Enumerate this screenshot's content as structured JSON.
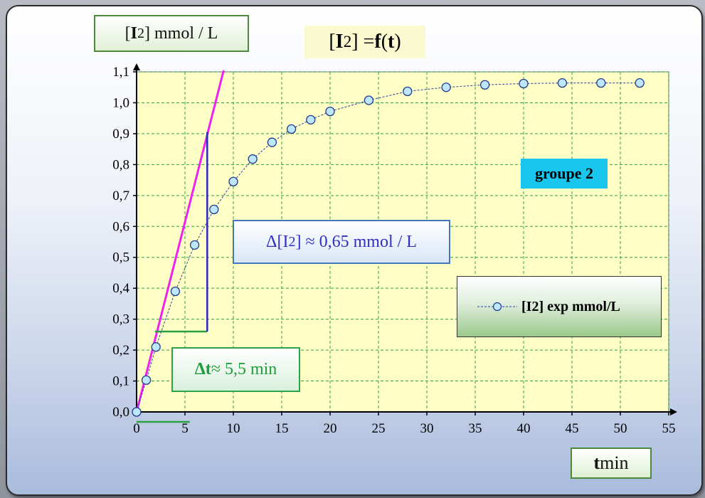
{
  "annotations": {
    "ylabel_prefix": "[ ",
    "ylabel_symbol": "I",
    "ylabel_sub": "2",
    "ylabel_suffix": " ] mmol / L",
    "title_prefix": "[ ",
    "title_symbol": "I",
    "title_sub": "2",
    "title_mid": " ] = ",
    "title_f": "f",
    "title_open": " (",
    "title_t": "t",
    "title_close": ")",
    "group_badge": "groupe 2",
    "delta_i2_prefix": "Δ[I",
    "delta_i2_sub": "2",
    "delta_i2_suffix": "] ≈ 0,65 mmol / L",
    "delta_t_symbol": "Δt",
    "delta_t_suffix": "≈ 5,5 min",
    "legend_label": "[I2] exp mmol/L",
    "xlabel_t": "t",
    "xlabel_unit": " min"
  },
  "colors": {
    "plot_bg": "#ffffc6",
    "grid": "#2fa04a",
    "series_line": "#2b3fa8",
    "marker_fill": "#bfe6ff",
    "marker_stroke": "#1e3a8a",
    "tangent": "#ee22ee",
    "delta_vertical": "#2a2ab8",
    "delta_horizontal": "#2aa043"
  },
  "chart_data": {
    "type": "scatter",
    "xlim": [
      0,
      55
    ],
    "ylim": [
      0,
      1.1
    ],
    "x_ticks": [
      0,
      5,
      10,
      15,
      20,
      25,
      30,
      35,
      40,
      45,
      50,
      55
    ],
    "x_tick_labels": [
      "0",
      "5",
      "10",
      "15",
      "20",
      "25",
      "30",
      "35",
      "40",
      "45",
      "50",
      "55"
    ],
    "y_ticks": [
      0,
      0.1,
      0.2,
      0.3,
      0.4,
      0.5,
      0.6,
      0.7,
      0.8,
      0.9,
      1.0,
      1.1
    ],
    "y_tick_labels": [
      "0,0",
      "0,1",
      "0,2",
      "0,3",
      "0,4",
      "0,5",
      "0,6",
      "0,7",
      "0,8",
      "0,9",
      "1,0",
      "1,1"
    ],
    "grid": true,
    "legend": "right",
    "series": [
      {
        "name": "[I2] exp mmol/L",
        "x": [
          0,
          1,
          2,
          4,
          6,
          8,
          10,
          12,
          14,
          16,
          18,
          20,
          24,
          28,
          32,
          36,
          40,
          44,
          48,
          52
        ],
        "y": [
          0.0,
          0.103,
          0.21,
          0.39,
          0.54,
          0.655,
          0.745,
          0.818,
          0.872,
          0.915,
          0.945,
          0.972,
          1.008,
          1.037,
          1.05,
          1.058,
          1.062,
          1.064,
          1.064,
          1.064
        ]
      }
    ],
    "tangent_line": {
      "x": [
        0,
        9.0
      ],
      "y": [
        0,
        1.105
      ]
    },
    "delta_t_segment": {
      "x": [
        1.9,
        7.3
      ],
      "y": [
        0.26,
        0.26
      ]
    },
    "delta_i2_segment": {
      "x": [
        7.3,
        7.3
      ],
      "y": [
        0.26,
        0.905
      ]
    },
    "delta_t_axis_marker": {
      "x": [
        0,
        5.5
      ],
      "y": [
        0,
        0
      ]
    }
  }
}
